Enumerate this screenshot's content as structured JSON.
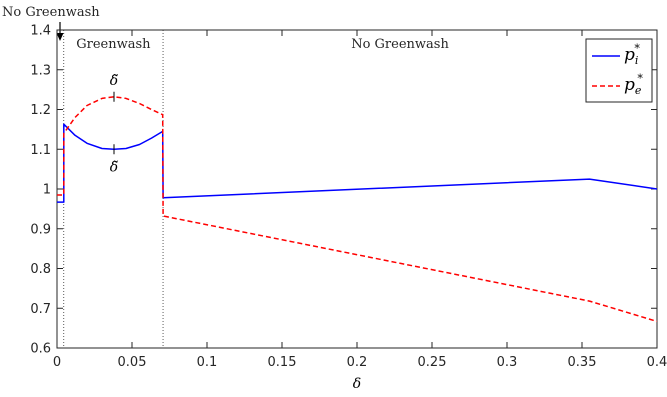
{
  "chart_data": {
    "type": "line",
    "title": "",
    "xlabel": "δ",
    "ylabel": "",
    "xlim": [
      0,
      0.4
    ],
    "ylim": [
      0.6,
      1.4
    ],
    "xticks": [
      0,
      0.05,
      0.1,
      0.15,
      0.2,
      0.25,
      0.3,
      0.35,
      0.4
    ],
    "xtick_labels": [
      "0",
      "0.05",
      "0.1",
      "0.15",
      "0.2",
      "0.25",
      "0.3",
      "0.35",
      "0.4"
    ],
    "yticks": [
      0.6,
      0.7,
      0.8,
      0.9,
      1.0,
      1.1,
      1.2,
      1.3,
      1.4
    ],
    "ytick_labels": [
      "0.6",
      "0.7",
      "0.8",
      "0.9",
      "1",
      "1.1",
      "1.2",
      "1.3",
      "1.4"
    ],
    "grid": false,
    "legend_position": "top-right",
    "regions": [
      {
        "label": "No Greenwash",
        "x_start": 0,
        "x_end": 0.0045
      },
      {
        "label": "Greenwash",
        "x_start": 0.0045,
        "x_end": 0.0707
      },
      {
        "label": "No Greenwash",
        "x_start": 0.0707,
        "x_end": 0.4
      }
    ],
    "vertical_lines": [
      0.0045,
      0.0707
    ],
    "series": [
      {
        "name": "p_i^*",
        "legend_base": "p",
        "legend_sub": "i",
        "legend_sup": "*",
        "color": "#0000ff",
        "dash": "solid",
        "x": [
          0,
          0.0045,
          0.0045,
          0.012,
          0.02,
          0.03,
          0.038,
          0.046,
          0.055,
          0.063,
          0.0705,
          0.0707,
          0.355,
          0.4
        ],
        "y": [
          0.967,
          0.967,
          1.163,
          1.135,
          1.115,
          1.102,
          1.1,
          1.102,
          1.112,
          1.128,
          1.145,
          0.978,
          1.025,
          1.0
        ]
      },
      {
        "name": "p_e^*",
        "legend_base": "p",
        "legend_sub": "e",
        "legend_sup": "*",
        "color": "#ff0000",
        "dash": "dashed",
        "x": [
          0,
          0.0045,
          0.0045,
          0.012,
          0.02,
          0.03,
          0.038,
          0.046,
          0.055,
          0.063,
          0.0705,
          0.0707,
          0.355,
          0.4
        ],
        "y": [
          0.985,
          0.985,
          1.14,
          1.18,
          1.21,
          1.228,
          1.232,
          1.228,
          1.215,
          1.2,
          1.187,
          0.932,
          0.718,
          0.667
        ]
      }
    ],
    "annotations": [
      {
        "text": "δ̃",
        "x": 0.038,
        "y": 1.232,
        "position": "above"
      },
      {
        "text": "δ̃",
        "x": 0.038,
        "y": 1.1,
        "position": "below"
      }
    ]
  }
}
